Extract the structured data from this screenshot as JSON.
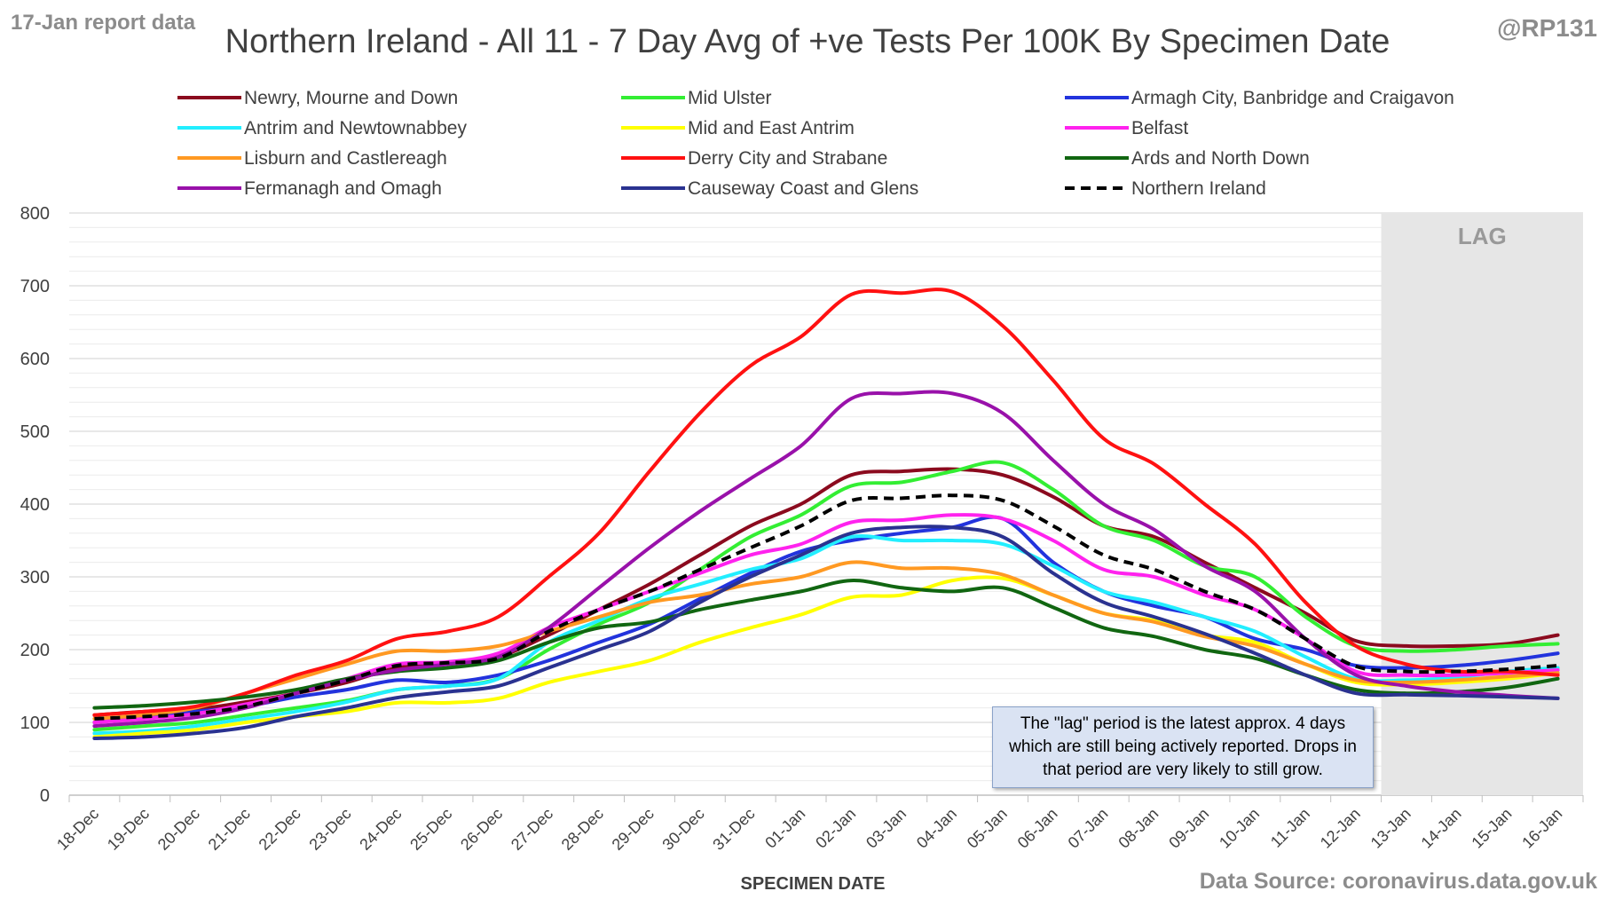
{
  "header": {
    "report_date": "17-Jan report data",
    "handle": "@RP131"
  },
  "footer": {
    "source": "Data Source: coronavirus.data.gov.uk"
  },
  "annotations": {
    "lag_label": "LAG",
    "lag_note": "The \"lag\" period is the latest approx. 4 days which are still being actively reported. Drops in that period are very likely to still grow."
  },
  "chart_data": {
    "type": "line",
    "title": "Northern Ireland - All 11 - 7 Day Avg of +ve Tests Per 100K By Specimen Date",
    "xlabel": "SPECIMEN DATE",
    "ylabel": "",
    "ylim": [
      0,
      800
    ],
    "yticks": [
      0,
      100,
      200,
      300,
      400,
      500,
      600,
      700,
      800
    ],
    "grid": true,
    "legend_position": "top",
    "lag_period": [
      "13-Jan",
      "16-Jan"
    ],
    "categories": [
      "18-Dec",
      "19-Dec",
      "20-Dec",
      "21-Dec",
      "22-Dec",
      "23-Dec",
      "24-Dec",
      "25-Dec",
      "26-Dec",
      "27-Dec",
      "28-Dec",
      "29-Dec",
      "30-Dec",
      "31-Dec",
      "01-Jan",
      "02-Jan",
      "03-Jan",
      "04-Jan",
      "05-Jan",
      "06-Jan",
      "07-Jan",
      "08-Jan",
      "09-Jan",
      "10-Jan",
      "11-Jan",
      "12-Jan",
      "13-Jan",
      "14-Jan",
      "15-Jan",
      "16-Jan"
    ],
    "series": [
      {
        "name": "Newry, Mourne and Down",
        "color": "#8b0a1e",
        "dashed": false,
        "values": [
          110,
          115,
          118,
          128,
          140,
          155,
          175,
          180,
          190,
          220,
          255,
          290,
          330,
          370,
          400,
          440,
          445,
          448,
          440,
          410,
          370,
          355,
          320,
          285,
          250,
          212,
          205,
          205,
          208,
          220
        ]
      },
      {
        "name": "Mid Ulster",
        "color": "#33ee33",
        "dashed": false,
        "values": [
          90,
          95,
          100,
          110,
          120,
          130,
          145,
          150,
          160,
          200,
          235,
          265,
          310,
          355,
          385,
          425,
          430,
          445,
          457,
          420,
          370,
          350,
          315,
          300,
          245,
          205,
          198,
          200,
          205,
          208
        ]
      },
      {
        "name": "Armagh City, Banbridge and Craigavon",
        "color": "#2233dd",
        "dashed": false,
        "values": [
          100,
          108,
          115,
          122,
          135,
          145,
          158,
          155,
          165,
          185,
          210,
          235,
          270,
          305,
          335,
          350,
          360,
          368,
          380,
          320,
          280,
          260,
          245,
          215,
          200,
          178,
          175,
          178,
          185,
          195
        ]
      },
      {
        "name": "Antrim and Newtownabbey",
        "color": "#22eeff",
        "dashed": false,
        "values": [
          85,
          88,
          95,
          105,
          115,
          128,
          145,
          150,
          160,
          210,
          240,
          270,
          290,
          310,
          325,
          355,
          350,
          350,
          345,
          315,
          280,
          265,
          245,
          225,
          190,
          160,
          158,
          162,
          170,
          175
        ]
      },
      {
        "name": "Mid and East Antrim",
        "color": "#ffff00",
        "dashed": false,
        "values": [
          80,
          85,
          90,
          100,
          108,
          115,
          127,
          127,
          133,
          155,
          170,
          185,
          210,
          230,
          248,
          272,
          275,
          295,
          298,
          275,
          250,
          240,
          220,
          210,
          180,
          155,
          152,
          155,
          160,
          168
        ]
      },
      {
        "name": "Belfast",
        "color": "#ff22ee",
        "dashed": false,
        "values": [
          100,
          105,
          112,
          125,
          140,
          160,
          180,
          183,
          195,
          230,
          255,
          280,
          305,
          330,
          345,
          375,
          378,
          385,
          380,
          350,
          310,
          300,
          275,
          255,
          215,
          170,
          165,
          165,
          168,
          172
        ]
      },
      {
        "name": "Lisburn and Castlereagh",
        "color": "#ff9922",
        "dashed": false,
        "values": [
          105,
          110,
          120,
          140,
          160,
          180,
          198,
          198,
          205,
          225,
          245,
          265,
          275,
          290,
          300,
          320,
          312,
          312,
          303,
          275,
          250,
          238,
          218,
          205,
          180,
          158,
          155,
          158,
          163,
          168
        ]
      },
      {
        "name": "Derry City and Strabane",
        "color": "#ff1111",
        "dashed": false,
        "values": [
          110,
          115,
          122,
          140,
          165,
          185,
          215,
          225,
          245,
          300,
          360,
          445,
          525,
          590,
          630,
          688,
          690,
          692,
          645,
          570,
          490,
          455,
          400,
          345,
          265,
          205,
          180,
          170,
          170,
          165
        ]
      },
      {
        "name": "Ards and North Down",
        "color": "#116611",
        "dashed": false,
        "values": [
          120,
          123,
          128,
          135,
          145,
          160,
          170,
          175,
          185,
          210,
          230,
          238,
          255,
          268,
          280,
          295,
          285,
          280,
          285,
          258,
          230,
          218,
          200,
          188,
          165,
          145,
          140,
          142,
          148,
          160
        ]
      },
      {
        "name": "Fermanagh and Omagh",
        "color": "#9911aa",
        "dashed": false,
        "values": [
          95,
          100,
          107,
          120,
          140,
          158,
          172,
          180,
          190,
          230,
          285,
          340,
          390,
          435,
          480,
          545,
          552,
          552,
          525,
          460,
          400,
          365,
          315,
          280,
          215,
          165,
          150,
          142,
          137,
          133
        ]
      },
      {
        "name": "Causeway Coast and Glens",
        "color": "#2a3290",
        "dashed": false,
        "values": [
          78,
          80,
          85,
          93,
          108,
          120,
          134,
          142,
          150,
          175,
          200,
          225,
          265,
          300,
          330,
          360,
          368,
          368,
          355,
          305,
          265,
          245,
          222,
          195,
          165,
          140,
          138,
          137,
          135,
          133
        ]
      },
      {
        "name": "Northern Ireland",
        "color": "#000000",
        "dashed": true,
        "values": [
          105,
          108,
          112,
          122,
          140,
          158,
          178,
          182,
          188,
          225,
          255,
          280,
          310,
          340,
          370,
          405,
          408,
          412,
          405,
          370,
          330,
          310,
          280,
          255,
          215,
          177,
          170,
          170,
          173,
          178
        ]
      }
    ]
  }
}
